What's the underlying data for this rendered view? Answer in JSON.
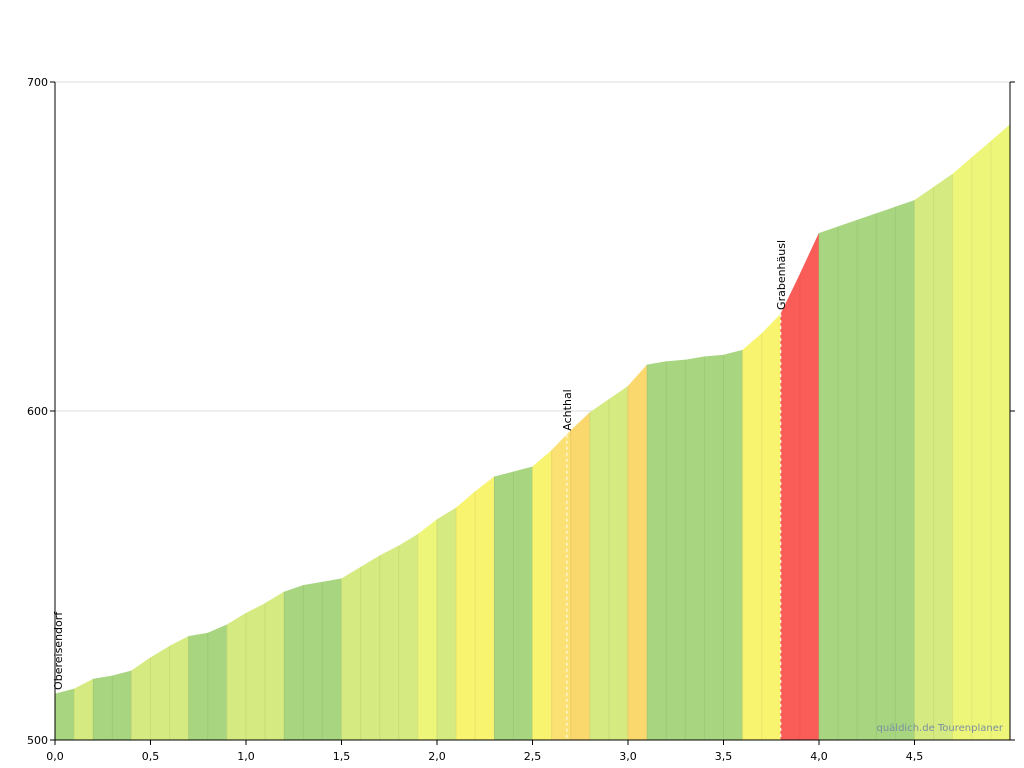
{
  "chart_data": {
    "type": "area",
    "title": "",
    "xlabel": "",
    "ylabel": "",
    "xlim": [
      0,
      5
    ],
    "ylim": [
      500,
      700
    ],
    "x_ticks": [
      "0,0",
      "0,5",
      "1,0",
      "1,5",
      "2,0",
      "2,5",
      "3,0",
      "3,5",
      "4,0",
      "4,5"
    ],
    "x_tick_values": [
      0,
      0.5,
      1.0,
      1.5,
      2.0,
      2.5,
      3.0,
      3.5,
      4.0,
      4.5
    ],
    "y_ticks": [
      "500",
      "600",
      "700"
    ],
    "y_tick_values": [
      500,
      600,
      700
    ],
    "grid": "horizontal",
    "profile_x": [
      0.0,
      0.1,
      0.2,
      0.3,
      0.4,
      0.5,
      0.6,
      0.7,
      0.8,
      0.9,
      1.0,
      1.1,
      1.2,
      1.3,
      1.4,
      1.5,
      1.6,
      1.7,
      1.8,
      1.9,
      2.0,
      2.1,
      2.2,
      2.3,
      2.4,
      2.5,
      2.6,
      2.7,
      2.8,
      2.9,
      3.0,
      3.1,
      3.2,
      3.3,
      3.4,
      3.5,
      3.6,
      3.7,
      3.8,
      3.9,
      4.0,
      4.1,
      4.2,
      4.3,
      4.4,
      4.5,
      4.6,
      4.7,
      4.8,
      4.9,
      5.0
    ],
    "elevation_m": [
      514,
      515.5,
      518.5,
      519.5,
      521,
      525,
      528.5,
      531.5,
      532.5,
      535,
      538.5,
      541.5,
      545,
      547,
      548,
      549,
      552.5,
      556,
      559,
      562.5,
      567,
      570.5,
      575.5,
      580,
      581.5,
      583,
      588,
      594,
      599.5,
      603.5,
      607.5,
      614,
      615,
      615.5,
      616.5,
      617,
      618.5,
      623.5,
      629.5,
      641.5,
      654,
      656,
      658,
      660,
      662,
      664,
      668,
      672,
      677,
      682,
      687
    ],
    "segment_colors": [
      "#a8d680",
      "#d5ea80",
      "#a8d680",
      "#a8d680",
      "#d5ea80",
      "#d5ea80",
      "#d5ea80",
      "#a8d680",
      "#a8d680",
      "#d5ea80",
      "#d5ea80",
      "#d5ea80",
      "#a8d680",
      "#a8d680",
      "#a8d680",
      "#d5ea80",
      "#d5ea80",
      "#d5ea80",
      "#d5ea80",
      "#eef67a",
      "#d5ea80",
      "#f8f470",
      "#f8f470",
      "#a8d680",
      "#a8d680",
      "#f8f470",
      "#fbe074",
      "#fbd86e",
      "#d5ea80",
      "#d5ea80",
      "#fbd86e",
      "#a8d680",
      "#a8d680",
      "#a8d680",
      "#a8d680",
      "#a8d680",
      "#f8f470",
      "#f8f470",
      "#fa5c58",
      "#fa5c58",
      "#a8d680",
      "#a8d680",
      "#a8d680",
      "#a8d680",
      "#a8d680",
      "#d5ea80",
      "#d5ea80",
      "#eef67a",
      "#eef67a",
      "#eef67a"
    ],
    "waypoints": [
      {
        "name": "Obereisendorf",
        "x": 0.0
      },
      {
        "name": "Achthal",
        "x": 2.68
      },
      {
        "name": "Grabenhäusl",
        "x": 3.8
      }
    ],
    "watermark": "quäldich.de Tourenplaner"
  }
}
